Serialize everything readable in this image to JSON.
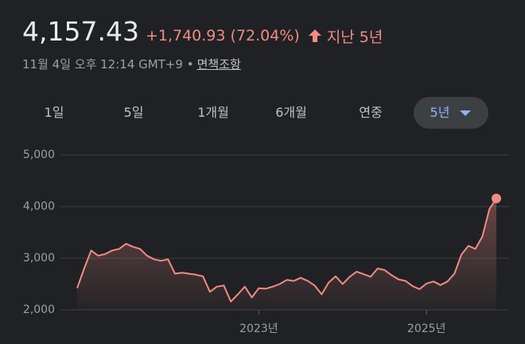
{
  "header": {
    "price": "4,157.43",
    "change": "+1,740.93 (72.04%)",
    "period": "지난 5년",
    "timestamp": "11월 4일 오후 12:14 GMT+9 •",
    "disclaimer": "면책조항"
  },
  "tabs": [
    "1일",
    "5일",
    "1개월",
    "6개월",
    "연중",
    "5년"
  ],
  "chart_data": {
    "type": "line",
    "color": "#f28b82",
    "values": [
      2420,
      2800,
      3150,
      3050,
      3080,
      3150,
      3180,
      3280,
      3220,
      3180,
      3050,
      2980,
      2950,
      2980,
      2700,
      2720,
      2700,
      2680,
      2650,
      2350,
      2450,
      2470,
      2160,
      2300,
      2450,
      2240,
      2420,
      2410,
      2450,
      2500,
      2580,
      2560,
      2620,
      2560,
      2470,
      2300,
      2530,
      2650,
      2500,
      2640,
      2740,
      2690,
      2640,
      2800,
      2770,
      2670,
      2590,
      2560,
      2460,
      2400,
      2510,
      2550,
      2480,
      2550,
      2700,
      3070,
      3240,
      3180,
      3420,
      3950,
      4157.43
    ],
    "xlim": [
      0,
      60
    ],
    "xticks": [
      {
        "value": 26,
        "label": "2023년"
      },
      {
        "value": 50,
        "label": "2025년"
      }
    ],
    "ylim": [
      2000,
      5000
    ],
    "yticks": [
      {
        "value": 2000,
        "label": "2,000"
      },
      {
        "value": 3000,
        "label": "3,000"
      },
      {
        "value": 4000,
        "label": "4,000"
      },
      {
        "value": 5000,
        "label": "5,000"
      }
    ],
    "grid": true
  }
}
